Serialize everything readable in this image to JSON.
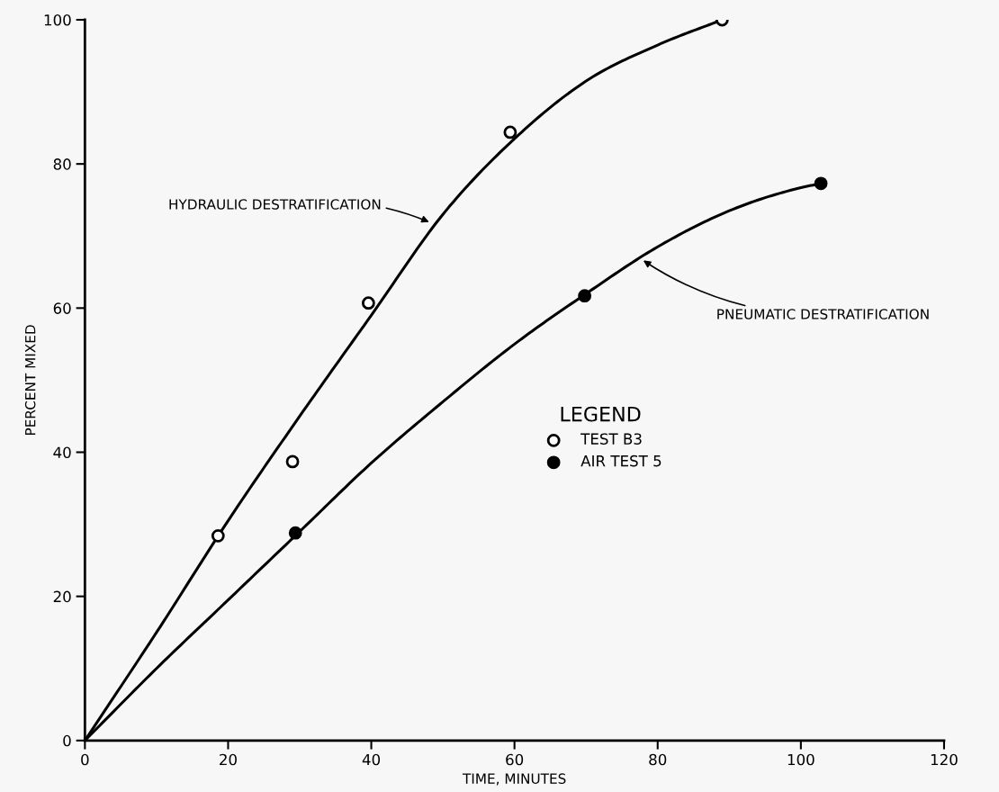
{
  "chart_data": {
    "type": "line",
    "xlabel": "TIME, MINUTES",
    "ylabel": "PERCENT MIXED",
    "xlim": [
      0,
      120
    ],
    "ylim": [
      0,
      100
    ],
    "xticks": [
      0,
      20,
      40,
      60,
      80,
      100,
      120
    ],
    "yticks": [
      0,
      20,
      40,
      60,
      80,
      100
    ],
    "grid": false,
    "legend": "center",
    "legend_title": "LEGEND",
    "line_style": "solid",
    "series": [
      {
        "color": "#000000",
        "marker": "none",
        "x": [
          0,
          10,
          20,
          30,
          40,
          50,
          60,
          70,
          80,
          89
        ],
        "values": [
          0,
          15,
          30.5,
          45,
          59,
          73,
          83.5,
          91.5,
          96.5,
          100
        ]
      },
      {
        "color": "#000000",
        "marker": "none",
        "x": [
          0,
          10,
          20,
          30,
          40,
          50,
          60,
          70,
          80,
          90,
          100,
          102.8
        ],
        "values": [
          0,
          10,
          19.5,
          29,
          38.5,
          47,
          55,
          62,
          68.5,
          73.5,
          76.7,
          77.3
        ]
      },
      {
        "type": "scatter",
        "name": "TEST B3",
        "color": "#ffffff",
        "marker": "circle",
        "x": [
          18.6,
          29,
          39.6,
          59.4,
          89
        ],
        "values": [
          28.4,
          38.7,
          60.7,
          84.4,
          100
        ]
      },
      {
        "type": "scatter",
        "name": "AIR TEST 5",
        "color": "#000000",
        "marker": "circle",
        "x": [
          29.4,
          69.8,
          102.8
        ],
        "values": [
          28.8,
          61.7,
          77.3
        ]
      }
    ],
    "annotations": [
      {
        "text": "HYDRAULIC DESTRATIFICATION",
        "x": 48.4,
        "y": 71.8
      },
      {
        "text": "PNEUMATIC DESTRATIFICATION",
        "x": 77.7,
        "y": 66.8
      }
    ]
  }
}
